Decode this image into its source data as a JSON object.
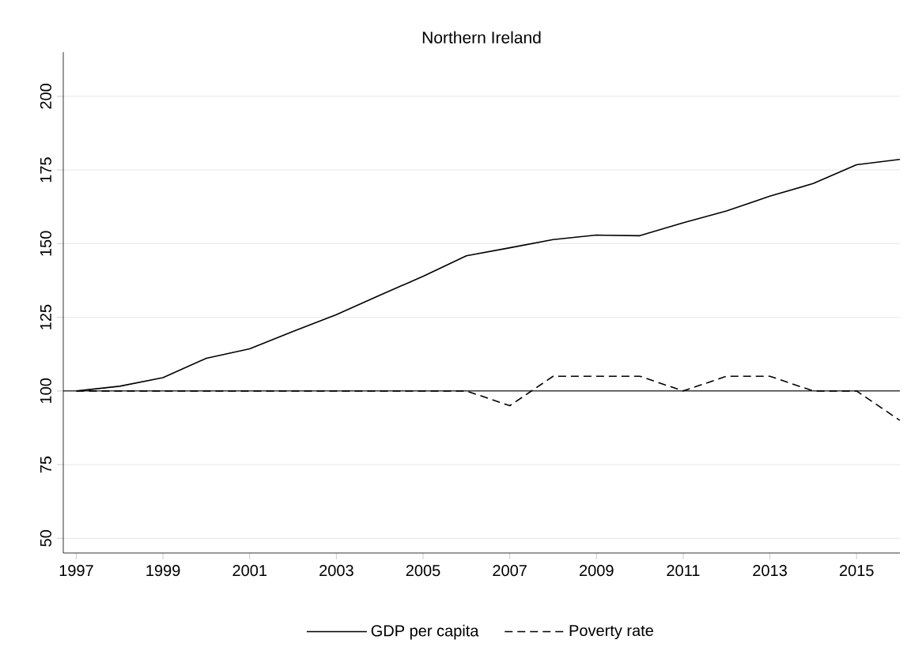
{
  "chart_data": {
    "type": "line",
    "title": "Northern Ireland",
    "x": [
      1997,
      1998,
      1999,
      2000,
      2001,
      2002,
      2003,
      2004,
      2005,
      2006,
      2007,
      2008,
      2009,
      2010,
      2011,
      2012,
      2013,
      2014,
      2015,
      2016
    ],
    "series": [
      {
        "name": "GDP per capita",
        "color": "#000000",
        "line_style": "solid",
        "values": [
          100,
          101.6,
          104.5,
          111.1,
          114.3,
          120.2,
          125.9,
          132.5,
          138.9,
          145.9,
          148.6,
          151.4,
          152.9,
          152.7,
          157.1,
          161.1,
          166.1,
          170.4,
          176.8,
          178.6
        ]
      },
      {
        "name": "Poverty rate",
        "color": "#000000",
        "line_style": "dashed",
        "values": [
          100,
          100,
          100,
          100,
          100,
          100,
          100,
          100,
          100,
          100,
          95,
          105,
          105,
          105,
          100,
          105,
          105,
          100,
          100,
          90
        ]
      }
    ],
    "xlim": [
      1996.7,
      2016
    ],
    "ylim": [
      45,
      215
    ],
    "xticks": [
      1997,
      1999,
      2001,
      2003,
      2005,
      2007,
      2009,
      2011,
      2013,
      2015
    ],
    "yticks": [
      50,
      75,
      100,
      125,
      150,
      175,
      200
    ],
    "ref_lines": [
      {
        "axis": "y",
        "value": 100,
        "color": "#000000",
        "line_style": "solid"
      }
    ],
    "grid": "y",
    "legend": "bottom",
    "marker": "none"
  }
}
